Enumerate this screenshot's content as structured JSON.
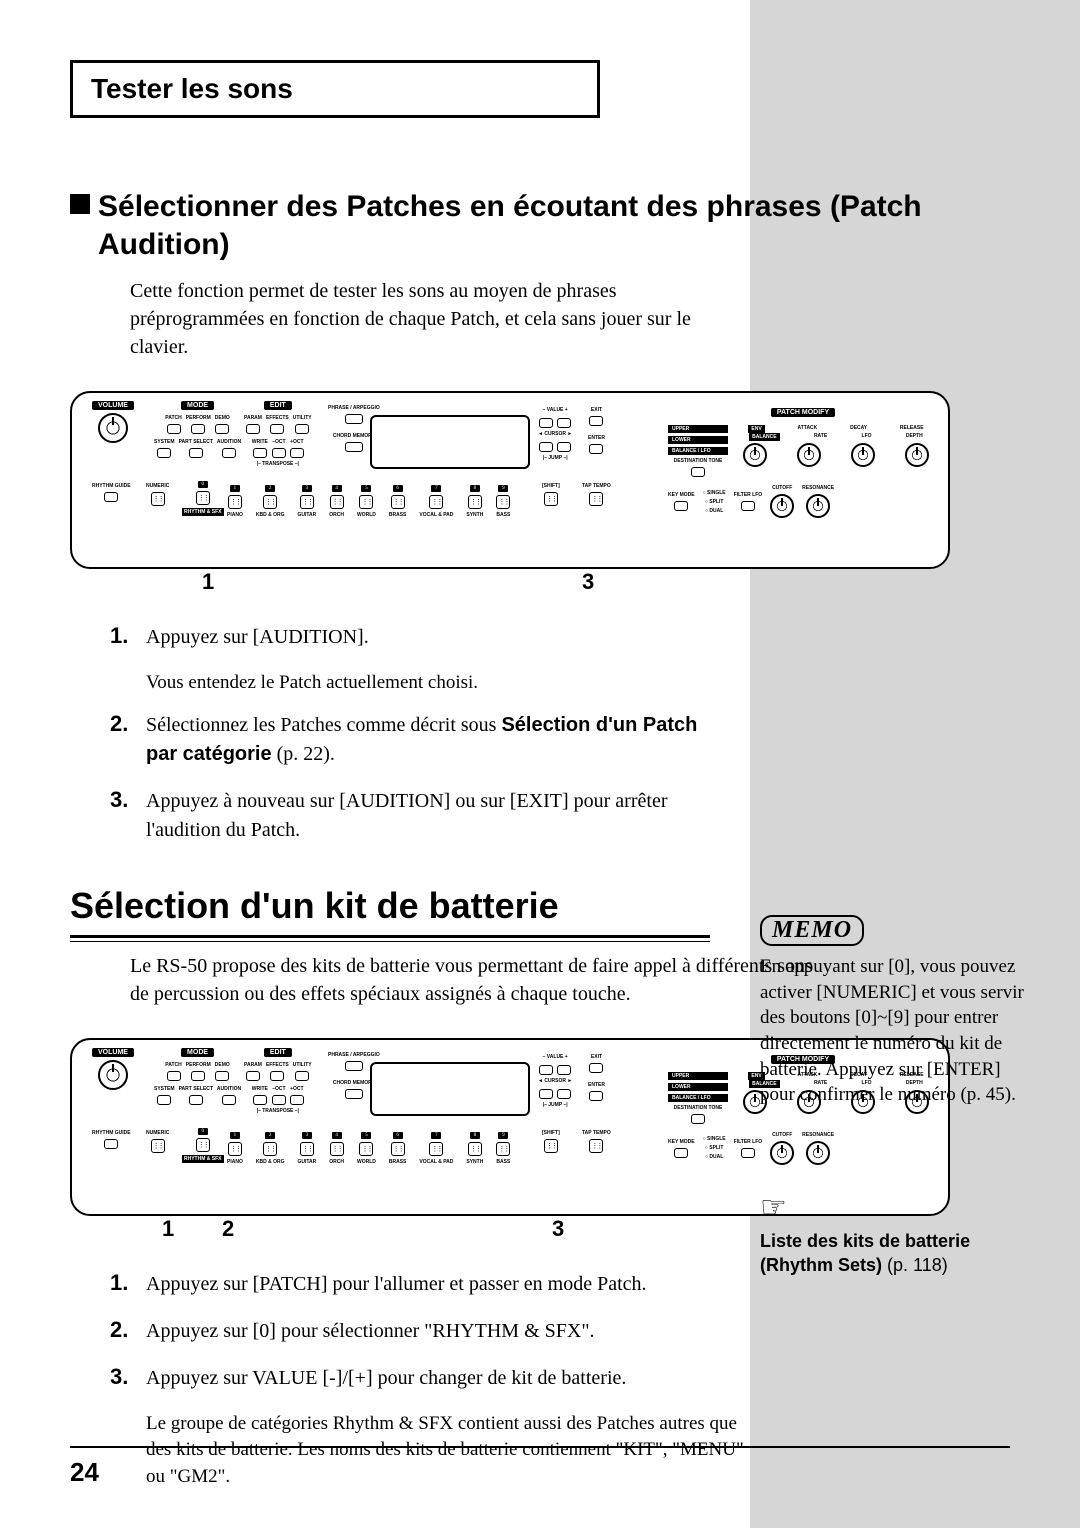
{
  "header": {
    "title": "Tester les sons"
  },
  "section1": {
    "heading": "Sélectionner des Patches en écoutant des phrases (Patch Audition)",
    "intro": "Cette fonction permet de tester les sons au moyen de phrases préprogrammées en fonction de chaque Patch, et cela sans jouer sur le clavier.",
    "markers": {
      "m1": "1",
      "m3": "3"
    },
    "steps": [
      {
        "n": "1.",
        "t": "Appuyez sur [AUDITION].",
        "sub": "Vous entendez le Patch actuellement choisi."
      },
      {
        "n": "2.",
        "t_pre": "Sélectionnez les Patches comme décrit sous ",
        "t_bold": "Sélection d'un Patch par catégorie",
        "t_post": " (p. 22)."
      },
      {
        "n": "3.",
        "t": "Appuyez à nouveau sur [AUDITION] ou sur [EXIT] pour arrêter l'audition du Patch."
      }
    ]
  },
  "section2": {
    "heading": "Sélection d'un kit de batterie",
    "intro": "Le RS-50 propose des kits de batterie vous permettant de faire appel à différents sons de percussion ou des effets spéciaux assignés à chaque touche.",
    "markers": {
      "m1": "1",
      "m2": "2",
      "m3": "3"
    },
    "steps": [
      {
        "n": "1.",
        "t": "Appuyez sur [PATCH] pour l'allumer et passer en mode Patch."
      },
      {
        "n": "2.",
        "t": "Appuyez sur [0] pour sélectionner \"RHYTHM & SFX\"."
      },
      {
        "n": "3.",
        "t": "Appuyez sur VALUE [-]/[+] pour changer de kit de batterie."
      }
    ],
    "note": "Le groupe de catégories Rhythm & SFX contient aussi des Patches autres que des kits de batterie. Les noms des kits de batterie contiennent \"KIT\", \"MENU\" ou \"GM2\"."
  },
  "memo": {
    "label": "MEMO",
    "text": "En appuyant sur [0], vous pouvez activer [NUMERIC] et vous servir des boutons [0]~[9] pour entrer directement le numéro du kit de batterie. Appuyez sur [ENTER] pour confirmer le numéro (p. 45)."
  },
  "ref": {
    "bold": "Liste des kits de batterie (Rhythm Sets)",
    "rest": " (p. 118)"
  },
  "panel": {
    "sections": {
      "volume": "VOLUME",
      "mode": "MODE",
      "edit": "EDIT",
      "patch_modify": "PATCH MODIFY",
      "phrase": "PHRASE / ARPEGGIO",
      "chord": "CHORD MEMORY",
      "value": "– VALUE +",
      "exit": "EXIT",
      "cursor": "◄ CURSOR ►",
      "enter": "ENTER",
      "shift": "[SHIFT]",
      "tap": "TAP TEMPO",
      "rhythm": "RHYTHM GUIDE",
      "numeric": "NUMERIC",
      "transpose": "|– TRANSPOSE –|",
      "jump": "|– JUMP –|"
    },
    "mode_row1": [
      "PATCH",
      "PERFORM",
      "DEMO"
    ],
    "mode_row2": [
      "SYSTEM",
      "PART SELECT",
      "AUDITION"
    ],
    "edit_row1": [
      "PARAM",
      "EFFECTS",
      "UTILITY"
    ],
    "edit_row2": [
      "WRITE",
      "–OCT",
      "+OCT"
    ],
    "categories": [
      "PIANO",
      "KBD & ORG",
      "GUITAR",
      "ORCH",
      "WORLD",
      "BRASS",
      "VOCAL & PAD",
      "SYNTH",
      "BASS"
    ],
    "cat_nums": [
      "1",
      "2",
      "3",
      "4",
      "5",
      "6",
      "7",
      "8",
      "9"
    ],
    "rhythm_sfx": "RHYTHM & SFX",
    "zero": "0",
    "patch_labels_l": [
      "UPPER",
      "LOWER",
      "BALANCE / LFO"
    ],
    "patch_labels_r": [
      "ENV",
      "BALANCE",
      "ATTACK",
      "DECAY",
      "RELEASE",
      "RATE",
      "LFO",
      "DEPTH"
    ],
    "dest_tone": "DESTINATION TONE",
    "key_mode": "KEY MODE",
    "key_opts": [
      "SINGLE",
      "SPLIT",
      "DUAL"
    ],
    "filter": "FILTER LFO",
    "cutoff": "CUTOFF",
    "resonance": "RESONANCE"
  },
  "page_number": "24"
}
